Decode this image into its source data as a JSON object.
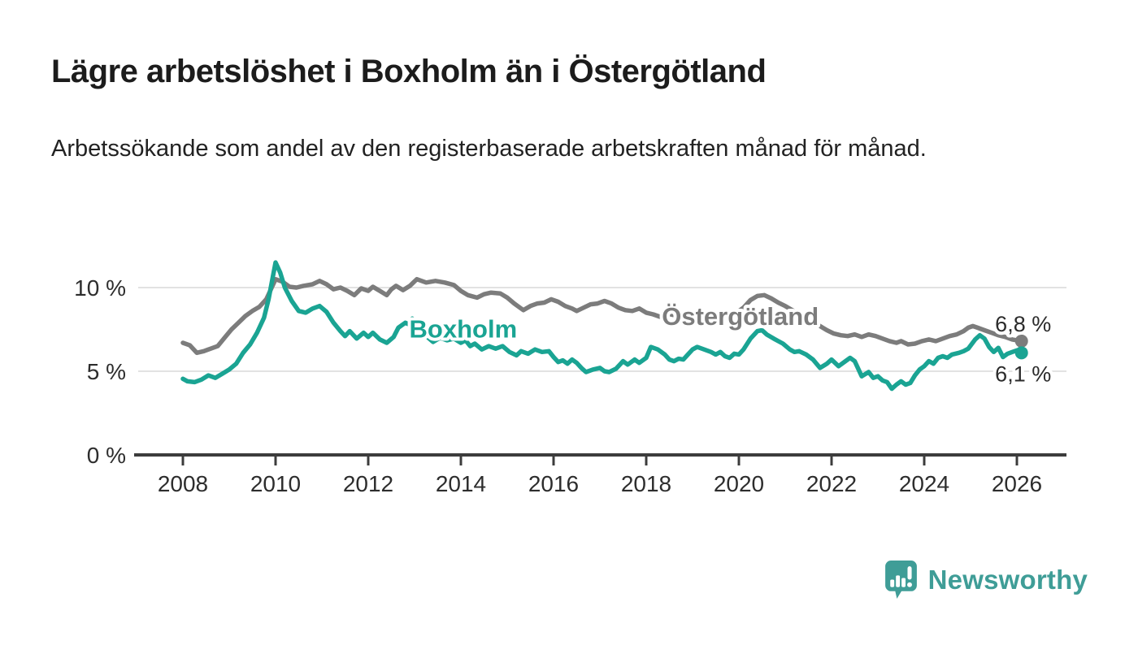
{
  "header": {
    "title": "Lägre arbetslöshet i Boxholm än i Östergötland",
    "subtitle": "Arbetssökande som andel av den registerbaserade arbetskraften månad för månad."
  },
  "chart_data": {
    "type": "line",
    "title": "Lägre arbetslöshet i Boxholm än i Östergötland",
    "xlabel": "",
    "ylabel": "",
    "xlim": [
      2007.4,
      2027.1
    ],
    "ylim": [
      0,
      12
    ],
    "grid": "horizontal",
    "legend_position": "inline-labels",
    "colors": {
      "grid": "#d8d8d8",
      "axis": "#3c3c3c",
      "tick_text": "#2d2d2d",
      "end_label_text": "#2b2b2b"
    },
    "yticks": [
      {
        "value": 0,
        "label": "0 %"
      },
      {
        "value": 5,
        "label": "5 %"
      },
      {
        "value": 10,
        "label": "10 %"
      }
    ],
    "xticks": [
      2008,
      2010,
      2012,
      2014,
      2016,
      2018,
      2020,
      2022,
      2024,
      2026
    ],
    "series": [
      {
        "name": "Östergötland",
        "color": "#7c7c7c",
        "label": {
          "x_year": 2020.03,
          "y_value": 8.3
        },
        "end_label": {
          "text": "6,8 %",
          "dx": 2,
          "dy": -12
        },
        "end_value": 6.8,
        "points": [
          [
            2008.0,
            6.7
          ],
          [
            2008.15,
            6.55
          ],
          [
            2008.3,
            6.1
          ],
          [
            2008.45,
            6.2
          ],
          [
            2008.6,
            6.35
          ],
          [
            2008.75,
            6.5
          ],
          [
            2008.9,
            7.0
          ],
          [
            2009.05,
            7.5
          ],
          [
            2009.2,
            7.9
          ],
          [
            2009.35,
            8.3
          ],
          [
            2009.5,
            8.6
          ],
          [
            2009.65,
            8.85
          ],
          [
            2009.8,
            9.3
          ],
          [
            2009.9,
            9.9
          ],
          [
            2010.0,
            10.5
          ],
          [
            2010.15,
            10.35
          ],
          [
            2010.3,
            10.05
          ],
          [
            2010.45,
            10.0
          ],
          [
            2010.6,
            10.1
          ],
          [
            2010.8,
            10.2
          ],
          [
            2010.95,
            10.4
          ],
          [
            2011.1,
            10.2
          ],
          [
            2011.25,
            9.9
          ],
          [
            2011.4,
            10.0
          ],
          [
            2011.55,
            9.8
          ],
          [
            2011.7,
            9.55
          ],
          [
            2011.85,
            9.95
          ],
          [
            2012.0,
            9.8
          ],
          [
            2012.1,
            10.05
          ],
          [
            2012.25,
            9.8
          ],
          [
            2012.4,
            9.55
          ],
          [
            2012.5,
            9.9
          ],
          [
            2012.6,
            10.1
          ],
          [
            2012.75,
            9.85
          ],
          [
            2012.9,
            10.1
          ],
          [
            2013.05,
            10.5
          ],
          [
            2013.25,
            10.3
          ],
          [
            2013.45,
            10.4
          ],
          [
            2013.65,
            10.3
          ],
          [
            2013.85,
            10.15
          ],
          [
            2014.0,
            9.8
          ],
          [
            2014.15,
            9.55
          ],
          [
            2014.35,
            9.4
          ],
          [
            2014.5,
            9.6
          ],
          [
            2014.65,
            9.7
          ],
          [
            2014.85,
            9.65
          ],
          [
            2015.0,
            9.4
          ],
          [
            2015.15,
            9.05
          ],
          [
            2015.35,
            8.65
          ],
          [
            2015.5,
            8.9
          ],
          [
            2015.65,
            9.05
          ],
          [
            2015.8,
            9.1
          ],
          [
            2015.95,
            9.3
          ],
          [
            2016.1,
            9.15
          ],
          [
            2016.25,
            8.9
          ],
          [
            2016.4,
            8.75
          ],
          [
            2016.5,
            8.6
          ],
          [
            2016.65,
            8.8
          ],
          [
            2016.8,
            9.0
          ],
          [
            2016.95,
            9.05
          ],
          [
            2017.1,
            9.2
          ],
          [
            2017.25,
            9.05
          ],
          [
            2017.4,
            8.8
          ],
          [
            2017.55,
            8.65
          ],
          [
            2017.7,
            8.6
          ],
          [
            2017.85,
            8.75
          ],
          [
            2018.0,
            8.5
          ],
          [
            2018.15,
            8.4
          ],
          [
            2018.3,
            8.25
          ],
          [
            2018.45,
            8.45
          ],
          [
            2018.6,
            8.35
          ],
          [
            2018.75,
            8.3
          ],
          [
            2018.9,
            8.45
          ],
          [
            2019.05,
            8.55
          ],
          [
            2019.2,
            8.45
          ],
          [
            2019.35,
            8.35
          ],
          [
            2019.5,
            8.3
          ],
          [
            2019.65,
            8.3
          ],
          [
            2019.8,
            8.35
          ],
          [
            2019.95,
            8.5
          ],
          [
            2020.1,
            8.8
          ],
          [
            2020.25,
            9.25
          ],
          [
            2020.4,
            9.5
          ],
          [
            2020.55,
            9.55
          ],
          [
            2020.7,
            9.35
          ],
          [
            2020.85,
            9.1
          ],
          [
            2021.0,
            8.9
          ],
          [
            2021.15,
            8.65
          ],
          [
            2021.3,
            8.4
          ],
          [
            2021.45,
            8.15
          ],
          [
            2021.6,
            7.9
          ],
          [
            2021.75,
            7.7
          ],
          [
            2021.9,
            7.45
          ],
          [
            2022.05,
            7.25
          ],
          [
            2022.2,
            7.15
          ],
          [
            2022.35,
            7.1
          ],
          [
            2022.5,
            7.2
          ],
          [
            2022.65,
            7.05
          ],
          [
            2022.8,
            7.2
          ],
          [
            2022.95,
            7.1
          ],
          [
            2023.1,
            6.95
          ],
          [
            2023.25,
            6.8
          ],
          [
            2023.4,
            6.7
          ],
          [
            2023.5,
            6.8
          ],
          [
            2023.65,
            6.6
          ],
          [
            2023.8,
            6.65
          ],
          [
            2023.95,
            6.8
          ],
          [
            2024.1,
            6.9
          ],
          [
            2024.25,
            6.8
          ],
          [
            2024.4,
            6.95
          ],
          [
            2024.55,
            7.1
          ],
          [
            2024.7,
            7.2
          ],
          [
            2024.85,
            7.4
          ],
          [
            2024.95,
            7.6
          ],
          [
            2025.05,
            7.7
          ],
          [
            2025.15,
            7.6
          ],
          [
            2025.3,
            7.45
          ],
          [
            2025.45,
            7.3
          ],
          [
            2025.6,
            7.15
          ],
          [
            2025.75,
            7.05
          ],
          [
            2025.9,
            6.9
          ],
          [
            2026.1,
            6.8
          ]
        ]
      },
      {
        "name": "Boxholm",
        "color": "#1aa493",
        "label": {
          "x_year": 2014.05,
          "y_value": 7.55
        },
        "end_label": {
          "text": "6,1 %",
          "dx": 2,
          "dy": 35
        },
        "end_value": 6.1,
        "points": [
          [
            2008.0,
            4.55
          ],
          [
            2008.1,
            4.4
          ],
          [
            2008.25,
            4.35
          ],
          [
            2008.4,
            4.5
          ],
          [
            2008.55,
            4.75
          ],
          [
            2008.7,
            4.6
          ],
          [
            2008.85,
            4.85
          ],
          [
            2009.0,
            5.1
          ],
          [
            2009.15,
            5.45
          ],
          [
            2009.3,
            6.1
          ],
          [
            2009.45,
            6.6
          ],
          [
            2009.6,
            7.3
          ],
          [
            2009.75,
            8.2
          ],
          [
            2009.85,
            9.3
          ],
          [
            2010.0,
            11.5
          ],
          [
            2010.1,
            10.9
          ],
          [
            2010.2,
            10.0
          ],
          [
            2010.35,
            9.2
          ],
          [
            2010.5,
            8.6
          ],
          [
            2010.65,
            8.5
          ],
          [
            2010.8,
            8.75
          ],
          [
            2010.95,
            8.9
          ],
          [
            2011.1,
            8.55
          ],
          [
            2011.25,
            7.9
          ],
          [
            2011.4,
            7.4
          ],
          [
            2011.5,
            7.1
          ],
          [
            2011.6,
            7.4
          ],
          [
            2011.75,
            6.95
          ],
          [
            2011.9,
            7.3
          ],
          [
            2012.0,
            7.05
          ],
          [
            2012.1,
            7.3
          ],
          [
            2012.25,
            6.9
          ],
          [
            2012.4,
            6.7
          ],
          [
            2012.55,
            7.05
          ],
          [
            2012.65,
            7.6
          ],
          [
            2012.8,
            7.9
          ],
          [
            2012.88,
            7.8
          ],
          [
            2012.95,
            8.15
          ],
          [
            2013.1,
            7.6
          ],
          [
            2013.25,
            7.1
          ],
          [
            2013.4,
            6.75
          ],
          [
            2013.55,
            7.0
          ],
          [
            2013.7,
            6.85
          ],
          [
            2013.85,
            6.95
          ],
          [
            2014.0,
            6.7
          ],
          [
            2014.1,
            6.85
          ],
          [
            2014.2,
            6.5
          ],
          [
            2014.3,
            6.65
          ],
          [
            2014.45,
            6.3
          ],
          [
            2014.6,
            6.5
          ],
          [
            2014.75,
            6.35
          ],
          [
            2014.9,
            6.5
          ],
          [
            2015.05,
            6.15
          ],
          [
            2015.2,
            5.95
          ],
          [
            2015.3,
            6.2
          ],
          [
            2015.45,
            6.05
          ],
          [
            2015.6,
            6.3
          ],
          [
            2015.75,
            6.15
          ],
          [
            2015.9,
            6.2
          ],
          [
            2016.0,
            5.85
          ],
          [
            2016.1,
            5.55
          ],
          [
            2016.2,
            5.65
          ],
          [
            2016.3,
            5.45
          ],
          [
            2016.4,
            5.7
          ],
          [
            2016.5,
            5.5
          ],
          [
            2016.6,
            5.2
          ],
          [
            2016.7,
            4.95
          ],
          [
            2016.85,
            5.1
          ],
          [
            2017.0,
            5.2
          ],
          [
            2017.1,
            5.0
          ],
          [
            2017.2,
            4.95
          ],
          [
            2017.35,
            5.15
          ],
          [
            2017.5,
            5.6
          ],
          [
            2017.6,
            5.4
          ],
          [
            2017.75,
            5.7
          ],
          [
            2017.85,
            5.5
          ],
          [
            2018.0,
            5.8
          ],
          [
            2018.1,
            6.45
          ],
          [
            2018.25,
            6.3
          ],
          [
            2018.4,
            6.0
          ],
          [
            2018.5,
            5.7
          ],
          [
            2018.6,
            5.6
          ],
          [
            2018.7,
            5.75
          ],
          [
            2018.8,
            5.7
          ],
          [
            2018.9,
            6.0
          ],
          [
            2019.0,
            6.3
          ],
          [
            2019.1,
            6.45
          ],
          [
            2019.25,
            6.3
          ],
          [
            2019.4,
            6.15
          ],
          [
            2019.5,
            6.0
          ],
          [
            2019.6,
            6.15
          ],
          [
            2019.7,
            5.9
          ],
          [
            2019.8,
            5.8
          ],
          [
            2019.9,
            6.05
          ],
          [
            2020.0,
            6.0
          ],
          [
            2020.1,
            6.3
          ],
          [
            2020.25,
            6.95
          ],
          [
            2020.4,
            7.4
          ],
          [
            2020.5,
            7.45
          ],
          [
            2020.6,
            7.2
          ],
          [
            2020.75,
            6.95
          ],
          [
            2020.85,
            6.8
          ],
          [
            2020.95,
            6.65
          ],
          [
            2021.1,
            6.3
          ],
          [
            2021.2,
            6.15
          ],
          [
            2021.3,
            6.2
          ],
          [
            2021.45,
            6.0
          ],
          [
            2021.6,
            5.7
          ],
          [
            2021.75,
            5.2
          ],
          [
            2021.9,
            5.45
          ],
          [
            2022.0,
            5.7
          ],
          [
            2022.15,
            5.3
          ],
          [
            2022.3,
            5.6
          ],
          [
            2022.4,
            5.8
          ],
          [
            2022.5,
            5.6
          ],
          [
            2022.65,
            4.7
          ],
          [
            2022.8,
            4.95
          ],
          [
            2022.9,
            4.6
          ],
          [
            2023.0,
            4.7
          ],
          [
            2023.1,
            4.45
          ],
          [
            2023.2,
            4.35
          ],
          [
            2023.3,
            3.95
          ],
          [
            2023.4,
            4.2
          ],
          [
            2023.5,
            4.4
          ],
          [
            2023.6,
            4.2
          ],
          [
            2023.7,
            4.3
          ],
          [
            2023.8,
            4.75
          ],
          [
            2023.9,
            5.1
          ],
          [
            2024.0,
            5.3
          ],
          [
            2024.1,
            5.6
          ],
          [
            2024.2,
            5.45
          ],
          [
            2024.3,
            5.8
          ],
          [
            2024.4,
            5.9
          ],
          [
            2024.5,
            5.8
          ],
          [
            2024.6,
            6.0
          ],
          [
            2024.75,
            6.1
          ],
          [
            2024.85,
            6.2
          ],
          [
            2024.95,
            6.35
          ],
          [
            2025.1,
            6.9
          ],
          [
            2025.2,
            7.15
          ],
          [
            2025.3,
            6.95
          ],
          [
            2025.4,
            6.45
          ],
          [
            2025.5,
            6.15
          ],
          [
            2025.6,
            6.4
          ],
          [
            2025.7,
            5.85
          ],
          [
            2025.8,
            6.05
          ],
          [
            2025.9,
            6.15
          ],
          [
            2026.0,
            6.25
          ],
          [
            2026.1,
            6.1
          ]
        ]
      }
    ]
  },
  "footer": {
    "brand": "Newsworthy",
    "brand_color": "#3f9d97",
    "logo_icon": "bar-chart-speech-bubble-icon"
  }
}
